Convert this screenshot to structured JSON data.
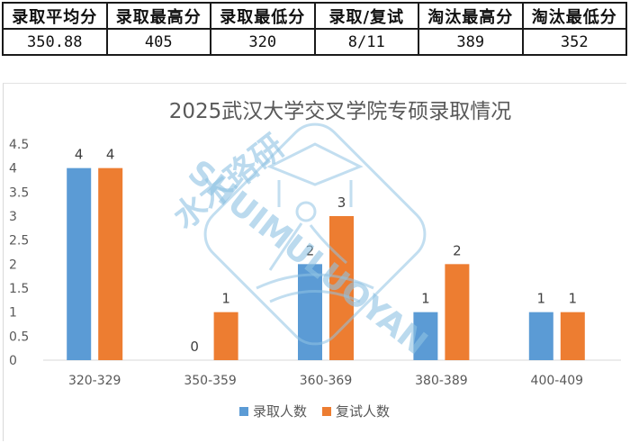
{
  "stats_table": {
    "headers": [
      "录取平均分",
      "录取最高分",
      "录取最低分",
      "录取/复试",
      "淘汰最高分",
      "淘汰最低分"
    ],
    "values": [
      "350.88",
      "405",
      "320",
      "8/11",
      "389",
      "352"
    ]
  },
  "watermark": {
    "cn": "水木珞研",
    "en": "SHUIMULUOYAN"
  },
  "chart_data": {
    "type": "bar",
    "title": "2025武汉大学交叉学院专硕录取情况",
    "categories": [
      "320-329",
      "350-359",
      "360-369",
      "380-389",
      "400-409"
    ],
    "series": [
      {
        "name": "录取人数",
        "values": [
          4,
          0,
          2,
          1,
          1
        ],
        "color": "#5b9bd5"
      },
      {
        "name": "复试人数",
        "values": [
          4,
          1,
          3,
          2,
          1
        ],
        "color": "#ed7d31"
      }
    ],
    "yticks": [
      "0",
      "0.5",
      "1",
      "1.5",
      "2",
      "2.5",
      "3",
      "3.5",
      "4",
      "4.5"
    ],
    "ylim": [
      0,
      4.5
    ],
    "xlabel": "",
    "ylabel": "",
    "grid": false,
    "legend": "bottom"
  }
}
